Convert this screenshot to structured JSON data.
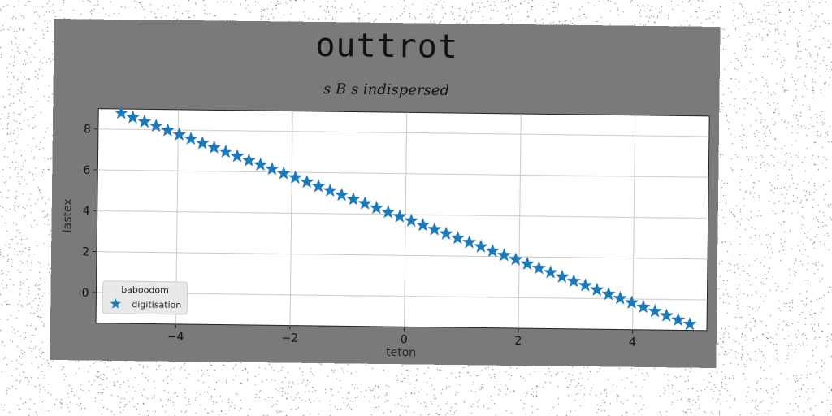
{
  "chart_data": {
    "type": "scatter",
    "title": "outtrot",
    "subtitle": "s B s indispersed",
    "xlabel": "teton",
    "ylabel": "lastex",
    "xlim": [
      -5.4,
      5.3
    ],
    "ylim": [
      -1.5,
      9.0
    ],
    "xticks": [
      -4,
      -2,
      0,
      2,
      4
    ],
    "yticks": [
      0,
      2,
      4,
      6,
      8
    ],
    "xtick_labels": [
      "−4",
      "−2",
      "0",
      "2",
      "4"
    ],
    "ytick_labels": [
      "0",
      "2",
      "4",
      "6",
      "8"
    ],
    "grid": true,
    "legend": {
      "title": "baboodom",
      "placement": "lower-left",
      "entries": [
        "digitisation"
      ]
    },
    "series": [
      {
        "name": "digitisation",
        "marker": "star",
        "color": "#1f77b4",
        "x_start": -5.0,
        "x_end": 5.0,
        "n_points": 50,
        "slope": -1.0,
        "intercept": 3.8
      }
    ]
  },
  "colors": {
    "figure_bg": "#7a7a7a",
    "axes_bg": "#ffffff",
    "series": "#1f77b4",
    "grid": "#c8c8c8"
  }
}
